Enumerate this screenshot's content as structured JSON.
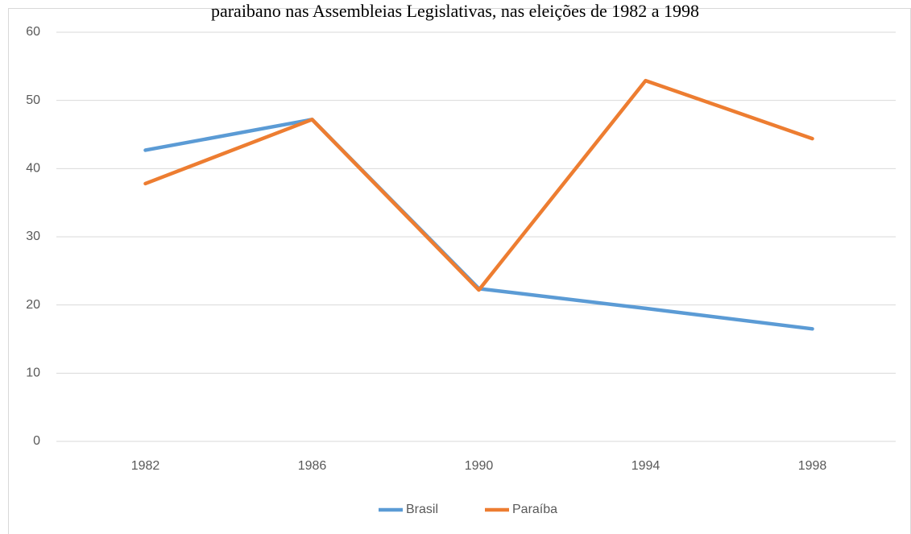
{
  "chart_data": {
    "type": "line",
    "title": "paraibano nas Assembleias Legislativas, nas eleições de 1982 a 1998",
    "categories": [
      "1982",
      "1986",
      "1990",
      "1994",
      "1998"
    ],
    "series": [
      {
        "name": "Brasil",
        "color": "#5b9bd5",
        "values": [
          42.7,
          47.2,
          22.4,
          19.5,
          16.5
        ]
      },
      {
        "name": "Paraíba",
        "color": "#ed7d31",
        "values": [
          37.8,
          47.2,
          22.2,
          52.9,
          44.4
        ]
      }
    ],
    "ylim": [
      0,
      60
    ],
    "yticks": [
      0,
      10,
      20,
      30,
      40,
      50,
      60
    ],
    "grid": true,
    "legend": "bottom"
  }
}
